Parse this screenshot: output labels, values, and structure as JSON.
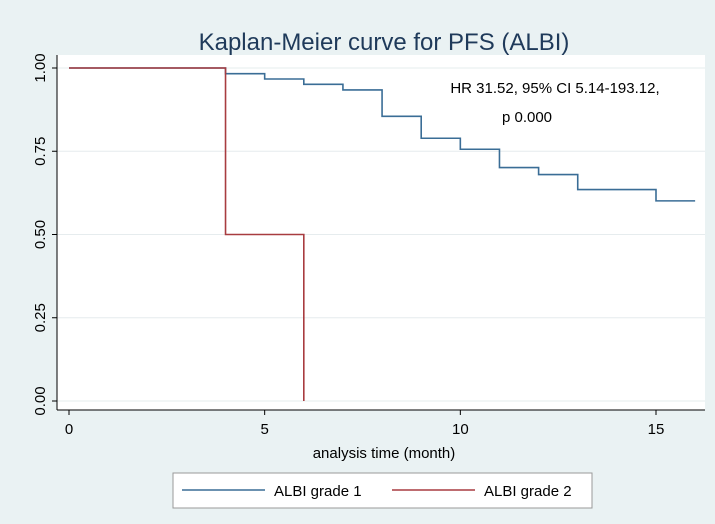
{
  "chart_data": {
    "type": "line",
    "title": "Kaplan-Meier curve for PFS (ALBI)",
    "xlabel": "analysis time (month)",
    "ylabel": "",
    "xlim": [
      0,
      16
    ],
    "ylim": [
      0,
      1
    ],
    "xticks": [
      0,
      5,
      10,
      15
    ],
    "yticks": [
      0.0,
      0.25,
      0.5,
      0.75,
      1.0
    ],
    "ytick_labels": [
      "0.00",
      "0.25",
      "0.50",
      "0.75",
      "1.00"
    ],
    "grid": true,
    "legend_position": "bottom",
    "annotation": [
      "HR 31.52, 95% CI 5.14-193.12,",
      "p 0.000"
    ],
    "series": [
      {
        "name": "ALBI grade 1",
        "color": "#3a6d96",
        "step": true,
        "x": [
          0,
          4,
          5,
          6,
          7,
          8,
          9,
          10,
          11,
          12,
          13,
          15,
          16
        ],
        "y": [
          1.0,
          0.983,
          0.967,
          0.951,
          0.934,
          0.855,
          0.789,
          0.756,
          0.701,
          0.68,
          0.635,
          0.601,
          0.601
        ]
      },
      {
        "name": "ALBI grade 2",
        "color": "#a83c40",
        "step": true,
        "x": [
          0,
          4,
          6
        ],
        "y": [
          1.0,
          0.5,
          0.0
        ]
      }
    ]
  }
}
